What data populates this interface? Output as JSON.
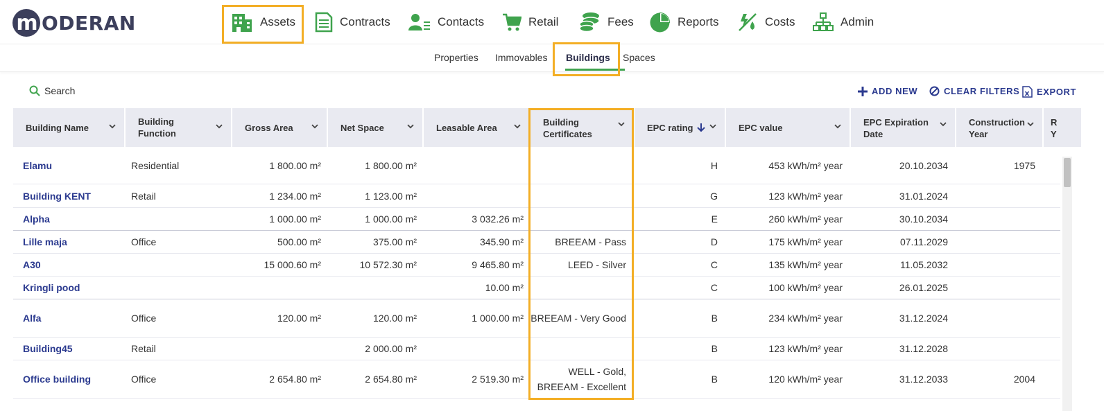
{
  "app": {
    "logo_letter": "m",
    "logo_text": "ODERAN"
  },
  "nav": [
    {
      "label": "Assets",
      "icon": "building-icon"
    },
    {
      "label": "Contracts",
      "icon": "document-icon"
    },
    {
      "label": "Contacts",
      "icon": "contacts-icon"
    },
    {
      "label": "Retail",
      "icon": "cart-icon"
    },
    {
      "label": "Fees",
      "icon": "coins-icon"
    },
    {
      "label": "Reports",
      "icon": "pie-chart-icon"
    },
    {
      "label": "Costs",
      "icon": "costs-icon"
    },
    {
      "label": "Admin",
      "icon": "org-chart-icon"
    }
  ],
  "subnav": [
    {
      "label": "Properties"
    },
    {
      "label": "Immovables"
    },
    {
      "label": "Buildings",
      "active": true
    },
    {
      "label": "Spaces"
    }
  ],
  "toolbar": {
    "search_label": "Search",
    "add_new": "ADD NEW",
    "clear_filters": "CLEAR FILTERS",
    "export": "EXPORT"
  },
  "colors": {
    "accent_green": "#3fa34d",
    "link_blue": "#2b3a8f",
    "highlight": "#f3ae25",
    "header_bg": "#e9eaf1"
  },
  "table": {
    "columns": [
      {
        "label": "Building Name"
      },
      {
        "label": "Building Function"
      },
      {
        "label": "Gross Area"
      },
      {
        "label": "Net Space"
      },
      {
        "label": "Leasable Area"
      },
      {
        "label": "Building Certificates"
      },
      {
        "label": "EPC rating",
        "sort": "desc"
      },
      {
        "label": "EPC value"
      },
      {
        "label": "EPC Expiration Date"
      },
      {
        "label": "Construction Year"
      },
      {
        "label": "R Y"
      }
    ],
    "rows": [
      {
        "name": "Elamu",
        "function": "Residential",
        "gross": "1 800.00 m²",
        "net": "1 800.00 m²",
        "leasable": "",
        "certs": "",
        "epc_rating": "H",
        "epc_value": "453 kWh/m² year",
        "epc_exp": "20.10.2034",
        "year": "1975"
      },
      {
        "name": "Building KENT",
        "function": "Retail",
        "gross": "1 234.00 m²",
        "net": "1 123.00 m²",
        "leasable": "",
        "certs": "",
        "epc_rating": "G",
        "epc_value": "123 kWh/m² year",
        "epc_exp": "31.01.2024",
        "year": ""
      },
      {
        "name": "Alpha",
        "function": "",
        "gross": "1 000.00 m²",
        "net": "1 000.00 m²",
        "leasable": "3 032.26 m²",
        "certs": "",
        "epc_rating": "E",
        "epc_value": "260 kWh/m² year",
        "epc_exp": "30.10.2034",
        "year": ""
      },
      {
        "name": "Lille maja",
        "function": "Office",
        "gross": "500.00 m²",
        "net": "375.00 m²",
        "leasable": "345.90 m²",
        "certs": "BREEAM - Pass",
        "epc_rating": "D",
        "epc_value": "175 kWh/m² year",
        "epc_exp": "07.11.2029",
        "year": ""
      },
      {
        "name": "A30",
        "function": "",
        "gross": "15 000.60 m²",
        "net": "10 572.30 m²",
        "leasable": "9 465.80 m²",
        "certs": "LEED - Silver",
        "epc_rating": "C",
        "epc_value": "135 kWh/m² year",
        "epc_exp": "11.05.2032",
        "year": ""
      },
      {
        "name": "Kringli pood",
        "function": "",
        "gross": "",
        "net": "",
        "leasable": "10.00 m²",
        "certs": "",
        "epc_rating": "C",
        "epc_value": "100 kWh/m² year",
        "epc_exp": "26.01.2025",
        "year": ""
      },
      {
        "name": "Alfa",
        "function": "Office",
        "gross": "120.00 m²",
        "net": "120.00 m²",
        "leasable": "1 000.00 m²",
        "certs": "BREEAM - Very Good",
        "epc_rating": "B",
        "epc_value": "234 kWh/m² year",
        "epc_exp": "31.12.2024",
        "year": ""
      },
      {
        "name": "Building45",
        "function": "Retail",
        "gross": "",
        "net": "2 000.00 m²",
        "leasable": "",
        "certs": "",
        "epc_rating": "B",
        "epc_value": "123 kWh/m² year",
        "epc_exp": "31.12.2028",
        "year": ""
      },
      {
        "name": "Office building",
        "function": "Office",
        "gross": "2 654.80 m²",
        "net": "2 654.80 m²",
        "leasable": "2 519.30 m²",
        "certs": "WELL - Gold, BREEAM - Excellent",
        "certs_lines": [
          "WELL - Gold,",
          "BREEAM - Excellent"
        ],
        "epc_rating": "B",
        "epc_value": "120 kWh/m² year",
        "epc_exp": "31.12.2033",
        "year": "2004"
      }
    ]
  }
}
